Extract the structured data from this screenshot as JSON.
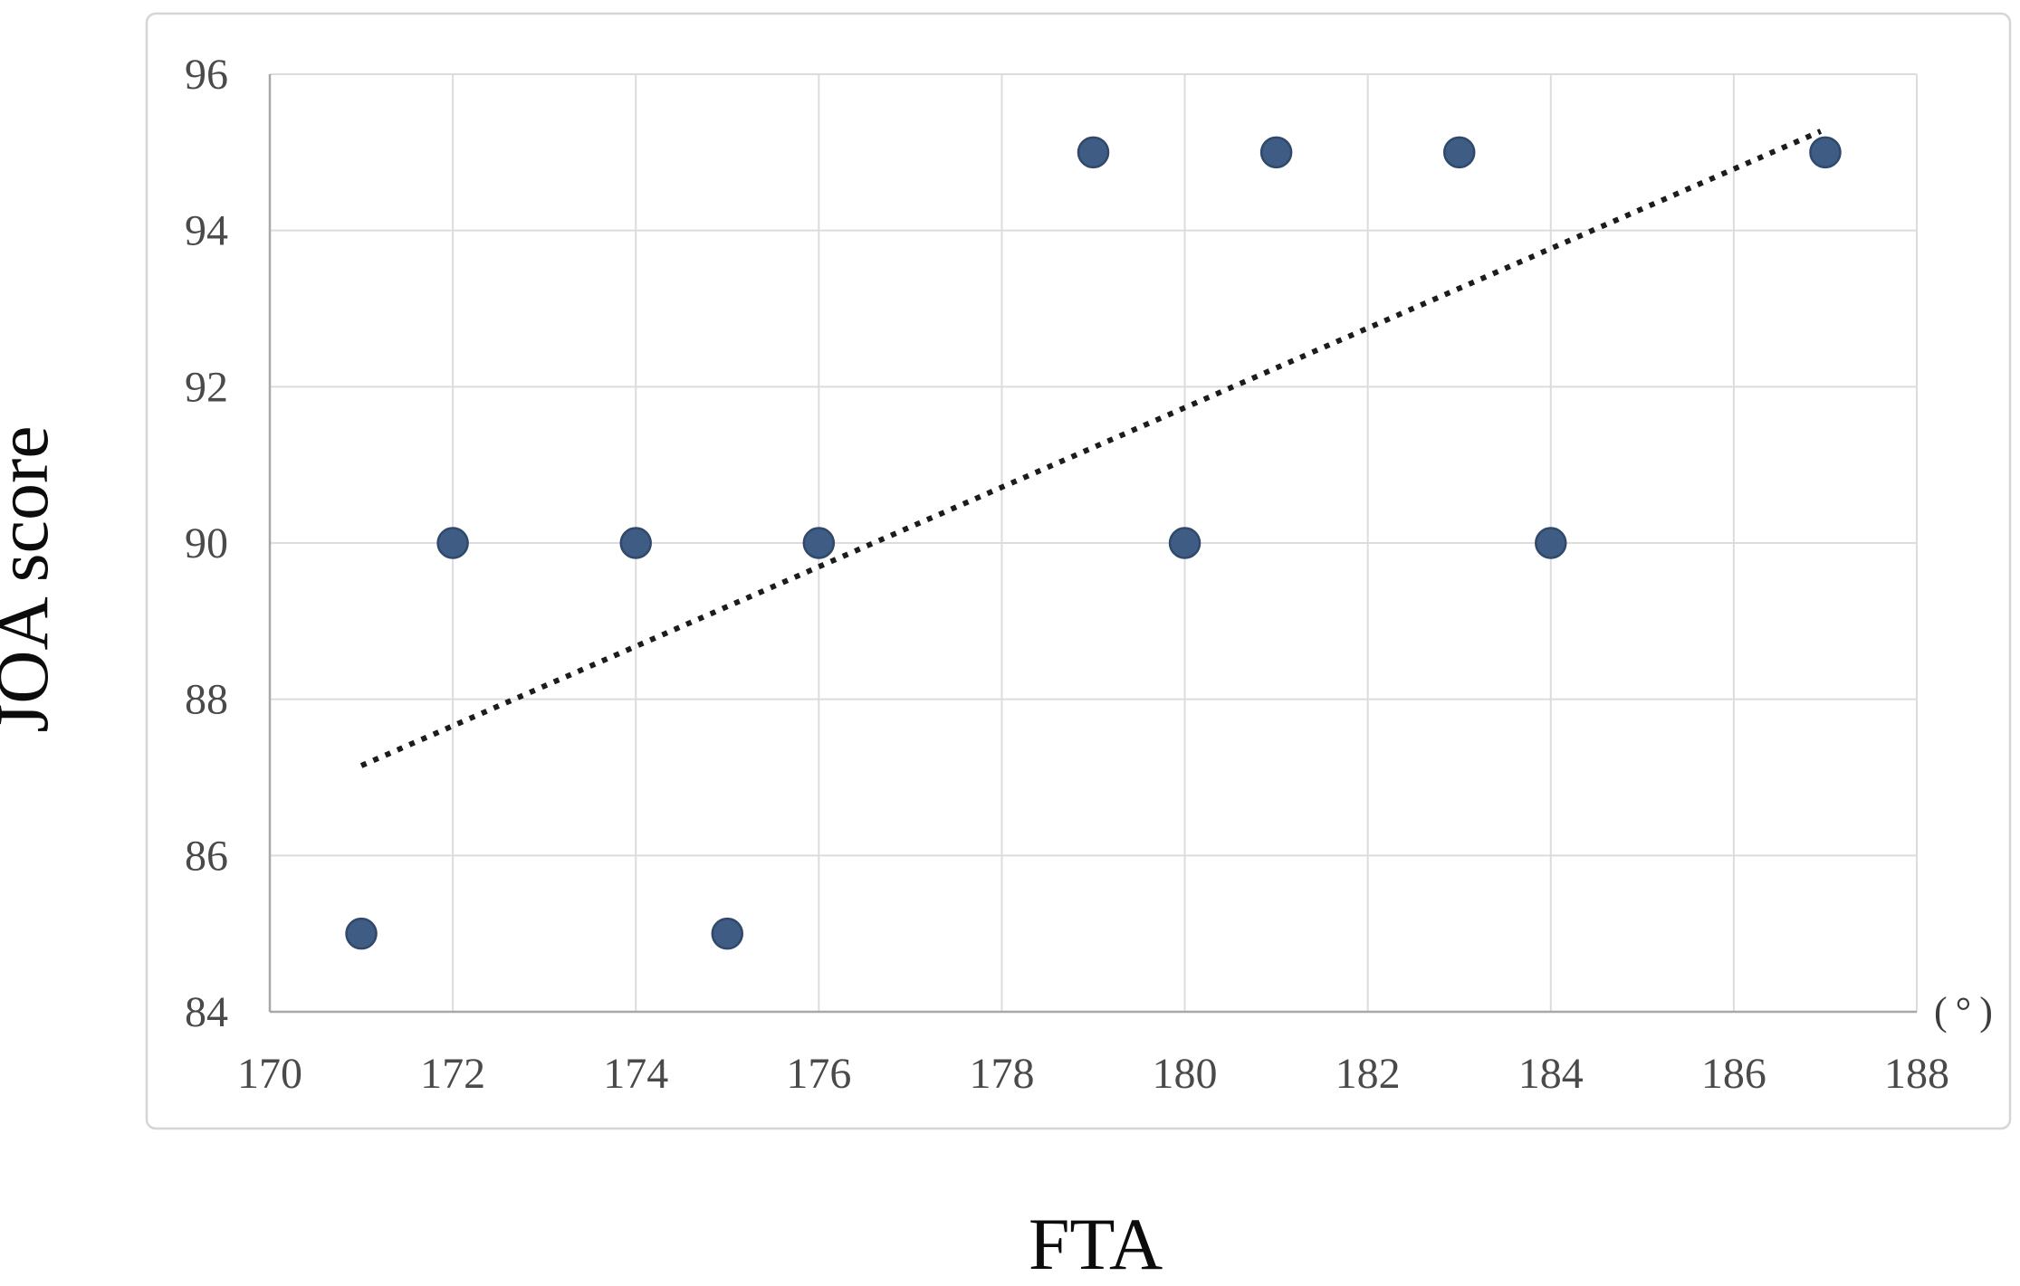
{
  "chart_data": {
    "type": "scatter",
    "title": "",
    "xlabel": "FTA",
    "ylabel": "JOA score",
    "x_unit_label": "(°)",
    "xlim": [
      170,
      188
    ],
    "ylim": [
      84,
      96
    ],
    "x_ticks": [
      170,
      172,
      174,
      176,
      178,
      180,
      182,
      184,
      186,
      188
    ],
    "y_ticks": [
      84,
      86,
      88,
      90,
      92,
      94,
      96
    ],
    "grid": true,
    "legend": "none",
    "points": [
      {
        "x": 171,
        "y": 85
      },
      {
        "x": 172,
        "y": 90
      },
      {
        "x": 174,
        "y": 90
      },
      {
        "x": 175,
        "y": 85
      },
      {
        "x": 176,
        "y": 90
      },
      {
        "x": 179,
        "y": 95
      },
      {
        "x": 180,
        "y": 90
      },
      {
        "x": 181,
        "y": 95
      },
      {
        "x": 183,
        "y": 95
      },
      {
        "x": 184,
        "y": 90
      },
      {
        "x": 187,
        "y": 95
      }
    ],
    "trendline": {
      "style": "dotted",
      "x_start": 171.0,
      "y_start": 87.15,
      "x_end": 186.95,
      "y_end": 95.27,
      "slope": 0.51,
      "intercept": 0.31
    },
    "colors": {
      "background": "#ffffff",
      "card_border": "#d5d5d5",
      "gridline": "#dcdcdc",
      "axis_line": "#a8a8a8",
      "tick_label": "#4a4a4a",
      "point_fill": "#3e5c84",
      "point_edge": "#30496a",
      "trend_dot": "#1c1c1c",
      "title_text": "#0c0c0c"
    }
  }
}
